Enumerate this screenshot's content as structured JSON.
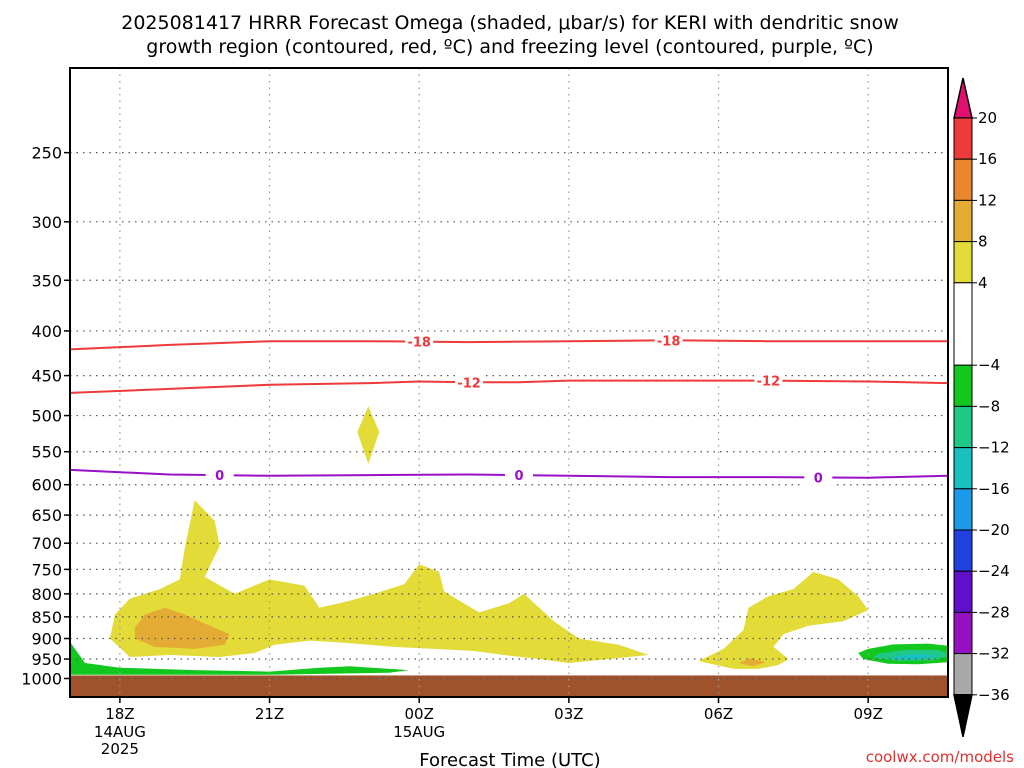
{
  "chart_data": {
    "type": "heatmap",
    "title_lines": [
      "2025081417 HRRR Forecast Omega (shaded, μbar/s) for KERI with dendritic snow",
      "growth region (contoured, red, ºC) and freezing level (contoured, purple, ºC)"
    ],
    "xlabel": "Forecast Time (UTC)",
    "ylabel": "",
    "y_axis": {
      "scale": "pressure (hPa), inverted",
      "ylim": [
        1050,
        200
      ],
      "ticks": [
        250,
        300,
        350,
        400,
        450,
        500,
        550,
        600,
        650,
        700,
        750,
        800,
        850,
        900,
        950,
        1000
      ]
    },
    "x_axis": {
      "ticks": [
        {
          "hour": 1,
          "label": "18Z",
          "sub": [
            "14AUG",
            "2025"
          ]
        },
        {
          "hour": 4,
          "label": "21Z",
          "sub": []
        },
        {
          "hour": 7,
          "label": "00Z",
          "sub": [
            "15AUG"
          ]
        },
        {
          "hour": 10,
          "label": "03Z",
          "sub": []
        },
        {
          "hour": 13,
          "label": "06Z",
          "sub": []
        },
        {
          "hour": 16,
          "label": "09Z",
          "sub": []
        }
      ],
      "xlim": [
        0,
        17.6
      ]
    },
    "grid": true,
    "colorbar": {
      "position": "right",
      "labels": [
        "20",
        "16",
        "12",
        "8",
        "4",
        "−4",
        "−8",
        "−12",
        "−16",
        "−20",
        "−24",
        "−28",
        "−32",
        "−36"
      ],
      "top_color": "#e0106e",
      "bottom_color": "#000000",
      "bands": [
        {
          "from": 16,
          "to": 20,
          "color": "#ee3a3a"
        },
        {
          "from": 12,
          "to": 16,
          "color": "#ea862b"
        },
        {
          "from": 8,
          "to": 12,
          "color": "#e4ac35"
        },
        {
          "from": 4,
          "to": 8,
          "color": "#e2db38"
        },
        {
          "from": -4,
          "to": 4,
          "color": "#ffffff"
        },
        {
          "from": -8,
          "to": -4,
          "color": "#12c81e"
        },
        {
          "from": -12,
          "to": -8,
          "color": "#20c888"
        },
        {
          "from": -16,
          "to": -12,
          "color": "#18c0c0"
        },
        {
          "from": -20,
          "to": -16,
          "color": "#1a9ae8"
        },
        {
          "from": -24,
          "to": -20,
          "color": "#2242e0"
        },
        {
          "from": -28,
          "to": -24,
          "color": "#6010c8"
        },
        {
          "from": -32,
          "to": -28,
          "color": "#9410c0"
        },
        {
          "from": -36,
          "to": -32,
          "color": "#a8a8a8"
        }
      ]
    },
    "contours": [
      {
        "name": "dendritic snow growth",
        "value": -18,
        "color": "#ee3a3a",
        "points": [
          [
            0,
            420
          ],
          [
            2,
            415
          ],
          [
            4,
            411
          ],
          [
            6,
            411
          ],
          [
            8,
            412
          ],
          [
            10,
            411
          ],
          [
            12,
            410
          ],
          [
            14,
            411
          ],
          [
            16,
            411
          ],
          [
            17.6,
            411
          ]
        ],
        "labels_at": [
          7,
          12
        ]
      },
      {
        "name": "dendritic snow growth",
        "value": -12,
        "color": "#ee3a3a",
        "points": [
          [
            0,
            471
          ],
          [
            2,
            466
          ],
          [
            4,
            461
          ],
          [
            6,
            459
          ],
          [
            7,
            457
          ],
          [
            8,
            458
          ],
          [
            9,
            458
          ],
          [
            10,
            456
          ],
          [
            12,
            456
          ],
          [
            14,
            456
          ],
          [
            16,
            457
          ],
          [
            17.6,
            459
          ]
        ],
        "labels_at": [
          8,
          14
        ]
      },
      {
        "name": "freezing level",
        "value": 0,
        "color": "#9a10c8",
        "points": [
          [
            0,
            577
          ],
          [
            2,
            584
          ],
          [
            4,
            586
          ],
          [
            6,
            585
          ],
          [
            8,
            584
          ],
          [
            10,
            586
          ],
          [
            12,
            588
          ],
          [
            14,
            588
          ],
          [
            16,
            589
          ],
          [
            17.6,
            586
          ]
        ],
        "labels_at": [
          3,
          9,
          15
        ]
      }
    ],
    "omega_regions": [
      {
        "value_range": [
          4,
          8
        ],
        "color": "#e2db38",
        "points": [
          [
            0.9,
            845
          ],
          [
            1.2,
            810
          ],
          [
            1.8,
            790
          ],
          [
            2.2,
            770
          ],
          [
            2.3,
            710
          ],
          [
            2.5,
            625
          ],
          [
            2.9,
            660
          ],
          [
            3.0,
            705
          ],
          [
            2.7,
            765
          ],
          [
            3.3,
            800
          ],
          [
            4.0,
            770
          ],
          [
            4.7,
            783
          ],
          [
            5.0,
            830
          ],
          [
            5.6,
            815
          ],
          [
            6.1,
            800
          ],
          [
            6.7,
            780
          ],
          [
            7.0,
            740
          ],
          [
            7.4,
            755
          ],
          [
            7.5,
            795
          ],
          [
            8.2,
            840
          ],
          [
            8.8,
            820
          ],
          [
            9.1,
            800
          ],
          [
            9.7,
            860
          ],
          [
            10.2,
            900
          ],
          [
            11.0,
            915
          ],
          [
            11.6,
            940
          ],
          [
            10.8,
            950
          ],
          [
            10.0,
            960
          ],
          [
            9.4,
            950
          ],
          [
            8.7,
            940
          ],
          [
            8.1,
            930
          ],
          [
            7.3,
            925
          ],
          [
            6.5,
            920
          ],
          [
            5.5,
            910
          ],
          [
            4.8,
            905
          ],
          [
            4.1,
            915
          ],
          [
            3.7,
            935
          ],
          [
            3.0,
            945
          ],
          [
            2.0,
            940
          ],
          [
            1.2,
            945
          ],
          [
            0.8,
            900
          ]
        ]
      },
      {
        "value_range": [
          4,
          8
        ],
        "color": "#e2db38",
        "points": [
          [
            12.6,
            955
          ],
          [
            13.1,
            925
          ],
          [
            13.5,
            880
          ],
          [
            13.6,
            830
          ],
          [
            14.0,
            805
          ],
          [
            14.5,
            790
          ],
          [
            14.9,
            755
          ],
          [
            15.4,
            770
          ],
          [
            15.8,
            805
          ],
          [
            16.0,
            835
          ],
          [
            15.5,
            860
          ],
          [
            14.8,
            870
          ],
          [
            14.3,
            890
          ],
          [
            14.1,
            920
          ],
          [
            14.4,
            950
          ],
          [
            14.2,
            965
          ],
          [
            13.8,
            975
          ],
          [
            13.3,
            975
          ]
        ]
      },
      {
        "value_range": [
          4,
          8
        ],
        "color": "#e2db38",
        "points": [
          [
            5.98,
            488
          ],
          [
            6.2,
            522
          ],
          [
            5.98,
            568
          ],
          [
            5.76,
            522
          ]
        ]
      },
      {
        "value_range": [
          8,
          12
        ],
        "color": "#e4ac35",
        "points": [
          [
            1.3,
            875
          ],
          [
            1.5,
            845
          ],
          [
            1.9,
            830
          ],
          [
            2.3,
            845
          ],
          [
            2.8,
            870
          ],
          [
            3.2,
            890
          ],
          [
            3.1,
            915
          ],
          [
            2.5,
            925
          ],
          [
            1.7,
            920
          ],
          [
            1.3,
            900
          ]
        ]
      },
      {
        "value_range": [
          8,
          12
        ],
        "color": "#e4ac35",
        "points": [
          [
            13.4,
            960
          ],
          [
            13.65,
            948
          ],
          [
            13.95,
            958
          ],
          [
            13.7,
            968
          ]
        ]
      },
      {
        "value_range": [
          -8,
          -4
        ],
        "color": "#12c81e",
        "points": [
          [
            0,
            908
          ],
          [
            0.3,
            960
          ],
          [
            1.0,
            972
          ],
          [
            2.5,
            978
          ],
          [
            4.0,
            982
          ],
          [
            5.0,
            972
          ],
          [
            5.6,
            968
          ],
          [
            6.3,
            974
          ],
          [
            6.8,
            978
          ],
          [
            6.4,
            985
          ],
          [
            4.0,
            990
          ],
          [
            2.0,
            990
          ],
          [
            0,
            990
          ]
        ]
      },
      {
        "value_range": [
          -8,
          -4
        ],
        "color": "#12c81e",
        "points": [
          [
            16.0,
            925
          ],
          [
            16.5,
            914
          ],
          [
            17.2,
            912
          ],
          [
            17.8,
            920
          ],
          [
            18.1,
            940
          ],
          [
            17.6,
            958
          ],
          [
            17.0,
            963
          ],
          [
            16.4,
            962
          ],
          [
            15.9,
            950
          ],
          [
            15.8,
            935
          ]
        ]
      },
      {
        "value_range": [
          -12,
          -8
        ],
        "color": "#20c888",
        "points": [
          [
            16.2,
            937
          ],
          [
            16.7,
            928
          ],
          [
            17.4,
            928
          ],
          [
            17.7,
            940
          ],
          [
            17.3,
            953
          ],
          [
            16.6,
            955
          ],
          [
            16.1,
            947
          ]
        ]
      },
      {
        "value_range": [
          -16,
          -12
        ],
        "color": "#18c0c0",
        "points": [
          [
            16.5,
            943
          ],
          [
            17.0,
            937
          ],
          [
            17.4,
            942
          ],
          [
            17.1,
            950
          ],
          [
            16.6,
            951
          ]
        ]
      }
    ],
    "terrain": {
      "top_hpa": 992,
      "color": "#a0522d"
    }
  },
  "footer": {
    "credit": "coolwx.com/models"
  }
}
